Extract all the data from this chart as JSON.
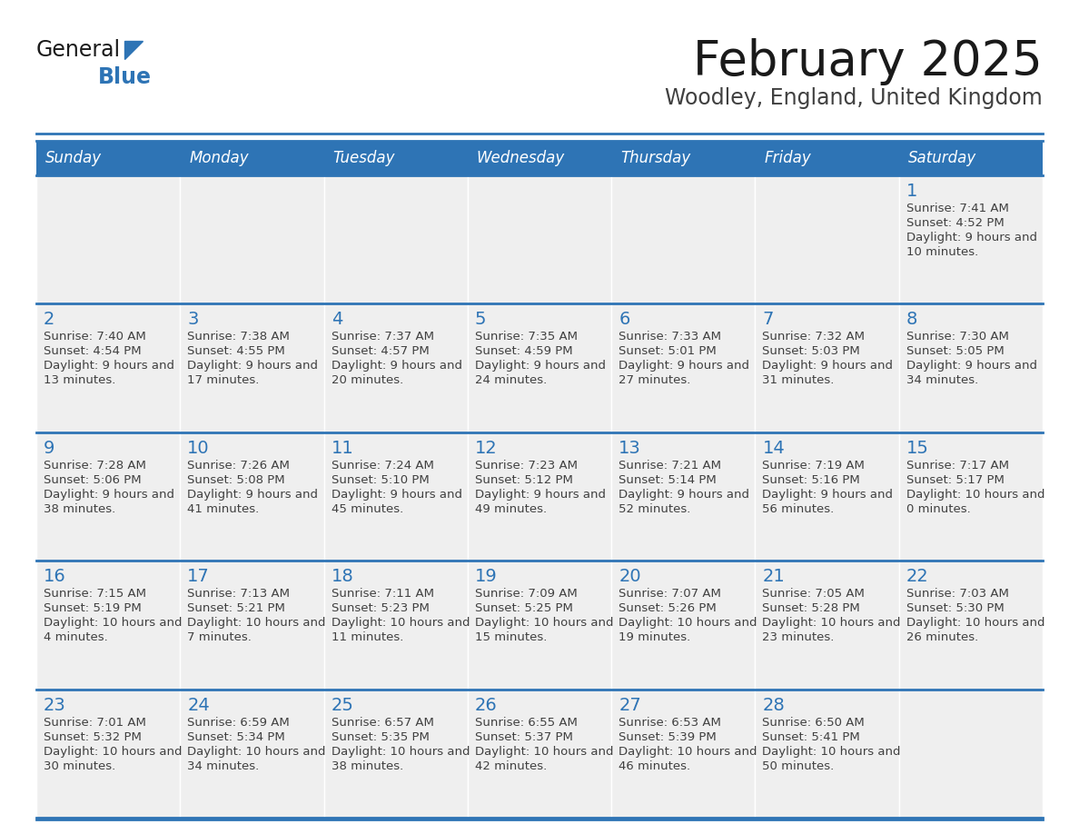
{
  "title": "February 2025",
  "subtitle": "Woodley, England, United Kingdom",
  "days_of_week": [
    "Sunday",
    "Monday",
    "Tuesday",
    "Wednesday",
    "Thursday",
    "Friday",
    "Saturday"
  ],
  "header_bg": "#2E74B5",
  "header_text": "#FFFFFF",
  "cell_bg": "#EFEFEF",
  "cell_bg_white": "#FFFFFF",
  "border_color": "#2E74B5",
  "text_color": "#404040",
  "title_color": "#1a1a1a",
  "subtitle_color": "#404040",
  "day_number_color": "#2E74B5",
  "logo_text_color": "#1a1a1a",
  "logo_blue_color": "#2E74B5",
  "weeks": [
    [
      {
        "day": null,
        "sunrise": null,
        "sunset": null,
        "daylight": null
      },
      {
        "day": null,
        "sunrise": null,
        "sunset": null,
        "daylight": null
      },
      {
        "day": null,
        "sunrise": null,
        "sunset": null,
        "daylight": null
      },
      {
        "day": null,
        "sunrise": null,
        "sunset": null,
        "daylight": null
      },
      {
        "day": null,
        "sunrise": null,
        "sunset": null,
        "daylight": null
      },
      {
        "day": null,
        "sunrise": null,
        "sunset": null,
        "daylight": null
      },
      {
        "day": 1,
        "sunrise": "7:41 AM",
        "sunset": "4:52 PM",
        "daylight": "9 hours and 10 minutes."
      }
    ],
    [
      {
        "day": 2,
        "sunrise": "7:40 AM",
        "sunset": "4:54 PM",
        "daylight": "9 hours and 13 minutes."
      },
      {
        "day": 3,
        "sunrise": "7:38 AM",
        "sunset": "4:55 PM",
        "daylight": "9 hours and 17 minutes."
      },
      {
        "day": 4,
        "sunrise": "7:37 AM",
        "sunset": "4:57 PM",
        "daylight": "9 hours and 20 minutes."
      },
      {
        "day": 5,
        "sunrise": "7:35 AM",
        "sunset": "4:59 PM",
        "daylight": "9 hours and 24 minutes."
      },
      {
        "day": 6,
        "sunrise": "7:33 AM",
        "sunset": "5:01 PM",
        "daylight": "9 hours and 27 minutes."
      },
      {
        "day": 7,
        "sunrise": "7:32 AM",
        "sunset": "5:03 PM",
        "daylight": "9 hours and 31 minutes."
      },
      {
        "day": 8,
        "sunrise": "7:30 AM",
        "sunset": "5:05 PM",
        "daylight": "9 hours and 34 minutes."
      }
    ],
    [
      {
        "day": 9,
        "sunrise": "7:28 AM",
        "sunset": "5:06 PM",
        "daylight": "9 hours and 38 minutes."
      },
      {
        "day": 10,
        "sunrise": "7:26 AM",
        "sunset": "5:08 PM",
        "daylight": "9 hours and 41 minutes."
      },
      {
        "day": 11,
        "sunrise": "7:24 AM",
        "sunset": "5:10 PM",
        "daylight": "9 hours and 45 minutes."
      },
      {
        "day": 12,
        "sunrise": "7:23 AM",
        "sunset": "5:12 PM",
        "daylight": "9 hours and 49 minutes."
      },
      {
        "day": 13,
        "sunrise": "7:21 AM",
        "sunset": "5:14 PM",
        "daylight": "9 hours and 52 minutes."
      },
      {
        "day": 14,
        "sunrise": "7:19 AM",
        "sunset": "5:16 PM",
        "daylight": "9 hours and 56 minutes."
      },
      {
        "day": 15,
        "sunrise": "7:17 AM",
        "sunset": "5:17 PM",
        "daylight": "10 hours and 0 minutes."
      }
    ],
    [
      {
        "day": 16,
        "sunrise": "7:15 AM",
        "sunset": "5:19 PM",
        "daylight": "10 hours and 4 minutes."
      },
      {
        "day": 17,
        "sunrise": "7:13 AM",
        "sunset": "5:21 PM",
        "daylight": "10 hours and 7 minutes."
      },
      {
        "day": 18,
        "sunrise": "7:11 AM",
        "sunset": "5:23 PM",
        "daylight": "10 hours and 11 minutes."
      },
      {
        "day": 19,
        "sunrise": "7:09 AM",
        "sunset": "5:25 PM",
        "daylight": "10 hours and 15 minutes."
      },
      {
        "day": 20,
        "sunrise": "7:07 AM",
        "sunset": "5:26 PM",
        "daylight": "10 hours and 19 minutes."
      },
      {
        "day": 21,
        "sunrise": "7:05 AM",
        "sunset": "5:28 PM",
        "daylight": "10 hours and 23 minutes."
      },
      {
        "day": 22,
        "sunrise": "7:03 AM",
        "sunset": "5:30 PM",
        "daylight": "10 hours and 26 minutes."
      }
    ],
    [
      {
        "day": 23,
        "sunrise": "7:01 AM",
        "sunset": "5:32 PM",
        "daylight": "10 hours and 30 minutes."
      },
      {
        "day": 24,
        "sunrise": "6:59 AM",
        "sunset": "5:34 PM",
        "daylight": "10 hours and 34 minutes."
      },
      {
        "day": 25,
        "sunrise": "6:57 AM",
        "sunset": "5:35 PM",
        "daylight": "10 hours and 38 minutes."
      },
      {
        "day": 26,
        "sunrise": "6:55 AM",
        "sunset": "5:37 PM",
        "daylight": "10 hours and 42 minutes."
      },
      {
        "day": 27,
        "sunrise": "6:53 AM",
        "sunset": "5:39 PM",
        "daylight": "10 hours and 46 minutes."
      },
      {
        "day": 28,
        "sunrise": "6:50 AM",
        "sunset": "5:41 PM",
        "daylight": "10 hours and 50 minutes."
      },
      {
        "day": null,
        "sunrise": null,
        "sunset": null,
        "daylight": null
      }
    ]
  ]
}
